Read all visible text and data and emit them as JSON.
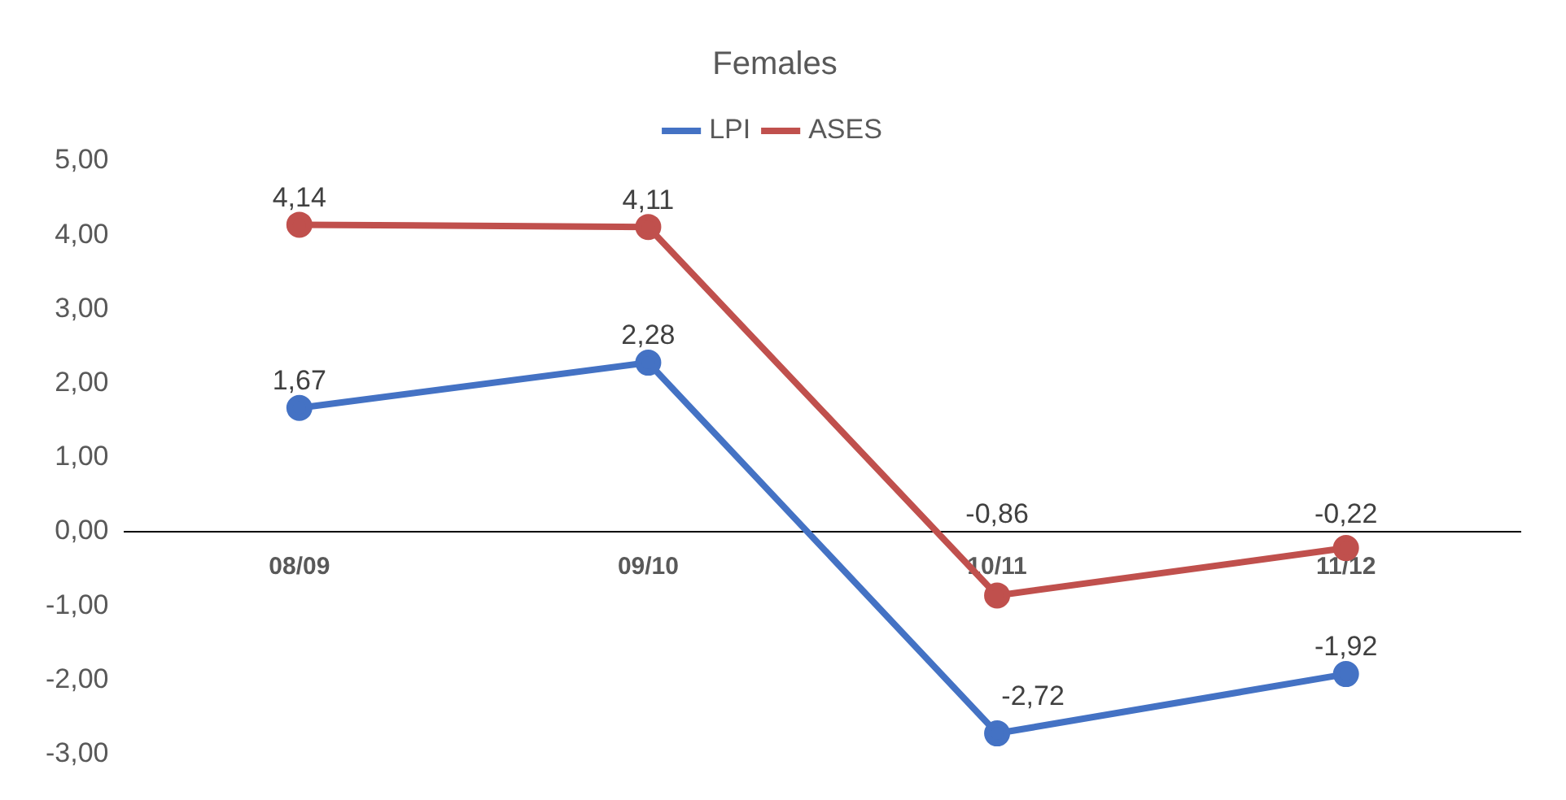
{
  "chart_data": {
    "type": "line",
    "title": "Females",
    "categories": [
      "08/09",
      "09/10",
      "10/11",
      "11/12"
    ],
    "series": [
      {
        "name": "LPI",
        "color": "#4472c4",
        "values": [
          1.67,
          2.28,
          -2.72,
          -1.92
        ],
        "value_labels": [
          "1,67",
          "2,28",
          "-2,72",
          "-1,92"
        ]
      },
      {
        "name": "ASES",
        "color": "#c0504d",
        "values": [
          4.14,
          4.11,
          -0.86,
          -0.22
        ],
        "value_labels": [
          "4,14",
          "4,11",
          "-0,86",
          "-0,22"
        ]
      }
    ],
    "ylim": [
      -3,
      5
    ],
    "yticks": [
      {
        "value": -3,
        "label": "-3,00"
      },
      {
        "value": -2,
        "label": "-2,00"
      },
      {
        "value": -1,
        "label": "-1,00"
      },
      {
        "value": 0,
        "label": "0,00"
      },
      {
        "value": 1,
        "label": "1,00"
      },
      {
        "value": 2,
        "label": "2,00"
      },
      {
        "value": 3,
        "label": "3,00"
      },
      {
        "value": 4,
        "label": "4,00"
      },
      {
        "value": 5,
        "label": "5,00"
      }
    ],
    "grid": false,
    "legend": "top",
    "marker": "circle",
    "line_style": "solid"
  }
}
